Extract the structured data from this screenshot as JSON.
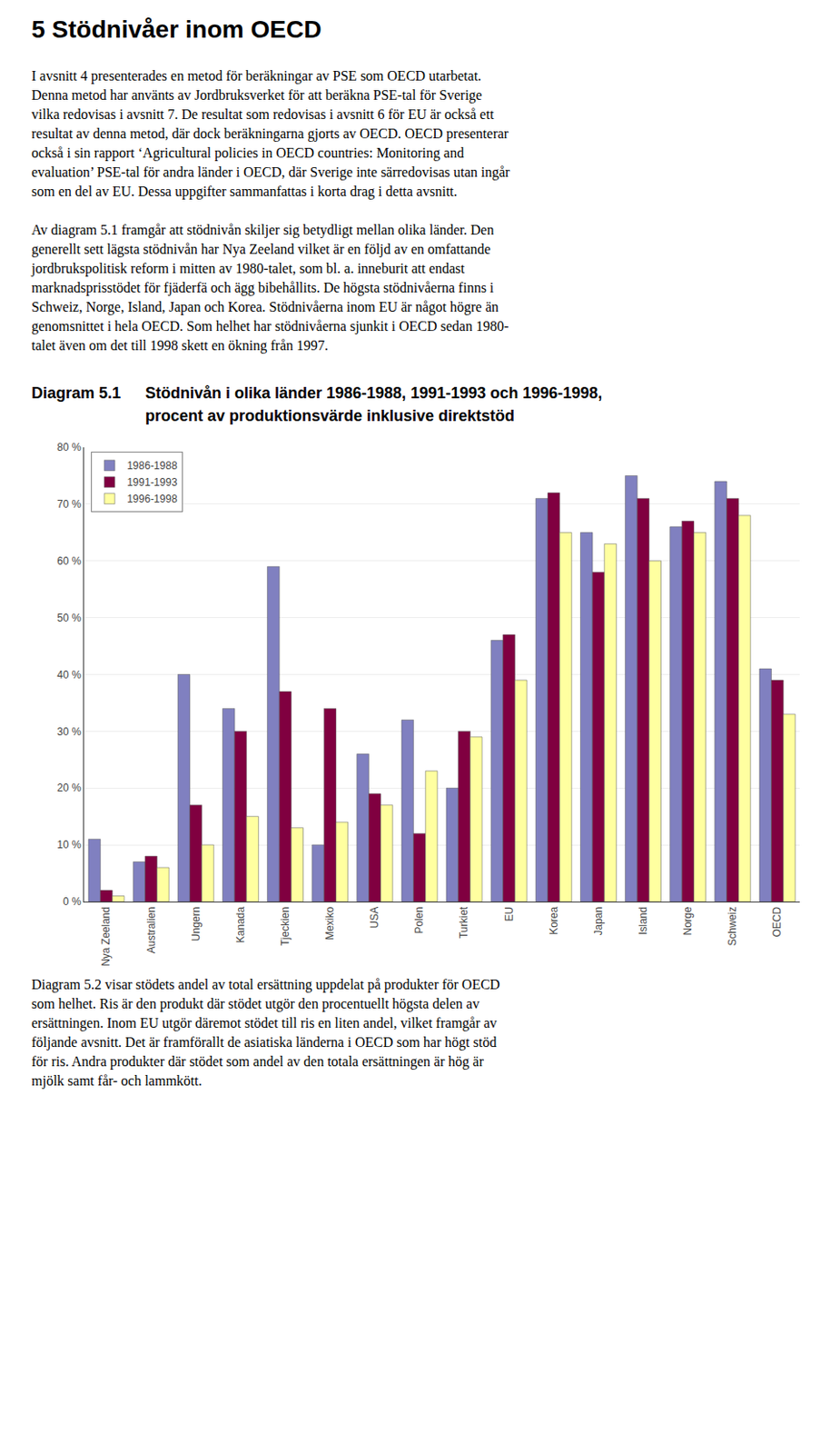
{
  "heading": "5  Stödnivåer inom OECD",
  "paragraphs_before": [
    [
      "I avsnitt 4 presenterades en metod för beräkningar av PSE som OECD utarbetat.",
      "Denna metod har använts av Jordbruksverket för att beräkna PSE-tal för Sverige",
      "vilka redovisas i avsnitt 7. De resultat som redovisas i avsnitt 6 för EU är också ett",
      "resultat av denna metod, där dock beräkningarna gjorts av OECD. OECD presenterar",
      "också i sin rapport ‘Agricultural policies in OECD countries: Monitoring and",
      "evaluation’ PSE-tal för andra länder i OECD, där Sverige inte särredovisas utan ingår",
      "som en del av EU. Dessa uppgifter sammanfattas i korta drag i detta avsnitt."
    ],
    [
      "Av diagram 5.1 framgår att stödnivån skiljer sig betydligt mellan olika länder. Den",
      "generellt sett lägsta stödnivån har Nya Zeeland vilket är en följd av en omfattande",
      "jordbrukspolitisk reform i mitten av 1980-talet, som bl. a. inneburit att endast",
      "marknadsprisstödet för fjäderfä och ägg bibehållits. De högsta stödnivåerna finns i",
      "Schweiz, Norge, Island, Japan och Korea. Stödnivåerna inom EU är något högre än",
      "genomsnittet i hela OECD. Som helhet har stödnivåerna sjunkit i OECD sedan 1980-",
      "talet även om det till 1998 skett en  ökning från 1997."
    ]
  ],
  "paragraphs_after": [
    [
      "Diagram 5.2 visar stödets andel av total ersättning uppdelat på produkter för OECD",
      "som helhet. Ris är den produkt där stödet utgör den procentuellt högsta delen av",
      "ersättningen. Inom EU utgör däremot stödet till ris en liten andel, vilket framgår av",
      "följande avsnitt. Det är framförallt de asiatiska länderna i OECD som har högt stöd",
      "för ris. Andra produkter där stödet som andel av den totala ersättningen är hög är",
      "mjölk samt får- och lammkött."
    ]
  ],
  "chart_data": {
    "type": "bar",
    "title": "Diagram 5.1",
    "subtitle": [
      "Stödnivån i olika länder 1986-1988, 1991-1993 och 1996-1998,",
      "procent av produktionsvärde inklusive direktstöd"
    ],
    "categories": [
      "Nya Zeeland",
      "Australien",
      "Ungern",
      "Kanada",
      "Tjeckien",
      "Mexiko",
      "USA",
      "Polen",
      "Turkiet",
      "EU",
      "Korea",
      "Japan",
      "Island",
      "Norge",
      "Schweiz",
      "OECD"
    ],
    "series": [
      {
        "name": "1986-1988",
        "color": "#8080c0",
        "values": [
          11,
          7,
          40,
          34,
          59,
          10,
          26,
          32,
          20,
          46,
          71,
          65,
          75,
          66,
          74,
          41
        ]
      },
      {
        "name": "1991-1993",
        "color": "#800040",
        "values": [
          2,
          8,
          17,
          30,
          37,
          34,
          19,
          12,
          30,
          47,
          72,
          58,
          71,
          67,
          71,
          39
        ]
      },
      {
        "name": "1996-1998",
        "color": "#ffffa0",
        "values": [
          1,
          6,
          10,
          15,
          13,
          14,
          17,
          23,
          29,
          39,
          65,
          63,
          60,
          65,
          68,
          33
        ]
      }
    ],
    "ylim": [
      0,
      80
    ],
    "yticks": [
      {
        "value": 0,
        "label": "0 %"
      },
      {
        "value": 10,
        "label": "10 %"
      },
      {
        "value": 20,
        "label": "20 %"
      },
      {
        "value": 30,
        "label": "30 %"
      },
      {
        "value": 40,
        "label": "40 %"
      },
      {
        "value": 50,
        "label": "50 %"
      },
      {
        "value": 60,
        "label": "60 %"
      },
      {
        "value": 70,
        "label": "70 %"
      },
      {
        "value": 80,
        "label": "80 %"
      }
    ],
    "grid": true,
    "legend": "upper left"
  }
}
